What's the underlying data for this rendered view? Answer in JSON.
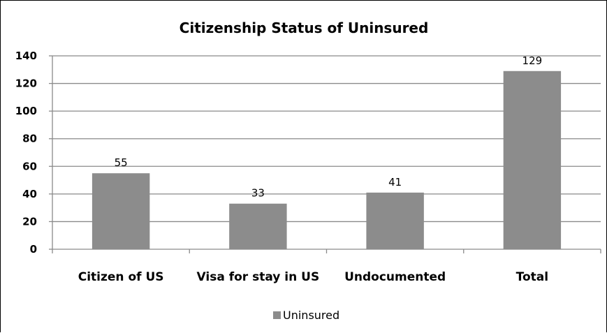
{
  "chart_data": {
    "type": "bar",
    "title": "Citizenship Status of Uninsured",
    "categories": [
      "Citizen of US",
      "Visa for stay in US",
      "Undocumented",
      "Total"
    ],
    "series": [
      {
        "name": "Uninsured",
        "values": [
          55,
          33,
          41,
          129
        ]
      }
    ],
    "data_labels": [
      "55",
      "33",
      "41",
      "129"
    ],
    "yticks": [
      "0",
      "20",
      "40",
      "60",
      "80",
      "100",
      "120",
      "140"
    ],
    "ylim": [
      0,
      140
    ],
    "grid": true,
    "legend": "bottom",
    "colors": {
      "bar": "#8c8c8c",
      "grid": "#8a8a8a",
      "axis": "#8a8a8a"
    }
  }
}
